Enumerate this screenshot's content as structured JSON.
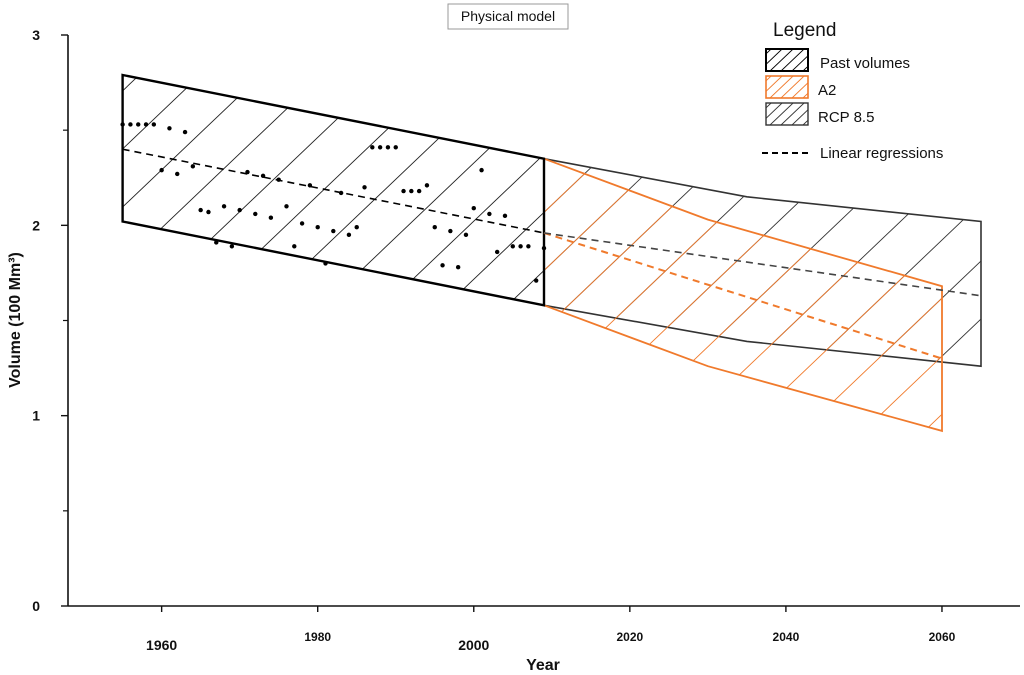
{
  "chart_data": {
    "type": "area",
    "title": "Physical model",
    "xlabel": "Year",
    "ylabel": "Volume (100 Mm³)",
    "xlim": [
      1948,
      2070
    ],
    "ylim": [
      0,
      3
    ],
    "x_ticks": [
      1960,
      1980,
      2000,
      2020,
      2040,
      2060
    ],
    "y_ticks": [
      0,
      1,
      2,
      3
    ],
    "grid": false,
    "legend_position": "top-right",
    "legend": {
      "title": "Legend",
      "items": [
        {
          "key": "past",
          "label": "Past volumes"
        },
        {
          "key": "a2",
          "label": "A2"
        },
        {
          "key": "rcp",
          "label": "RCP 8.5"
        },
        {
          "key": "regressions",
          "label": "Linear regressions"
        }
      ]
    },
    "colors": {
      "past": "#000000",
      "a2": "#f07a2c",
      "rcp": "#333333",
      "regression_rcp": "#444444"
    },
    "bands": [
      {
        "key": "past",
        "upper": [
          [
            1955,
            2.79
          ],
          [
            2009,
            2.35
          ]
        ],
        "lower": [
          [
            1955,
            2.02
          ],
          [
            2009,
            1.58
          ]
        ]
      },
      {
        "key": "a2",
        "upper": [
          [
            2009,
            2.35
          ],
          [
            2030,
            2.03
          ],
          [
            2060,
            1.68
          ]
        ],
        "lower": [
          [
            2009,
            1.58
          ],
          [
            2030,
            1.26
          ],
          [
            2060,
            0.92
          ]
        ]
      },
      {
        "key": "rcp",
        "upper": [
          [
            2009,
            2.35
          ],
          [
            2035,
            2.15
          ],
          [
            2065,
            2.02
          ]
        ],
        "lower": [
          [
            2009,
            1.58
          ],
          [
            2035,
            1.39
          ],
          [
            2065,
            1.26
          ]
        ]
      }
    ],
    "regressions": [
      {
        "key": "past",
        "points": [
          [
            1955,
            2.4
          ],
          [
            2009,
            1.96
          ]
        ]
      },
      {
        "key": "a2",
        "points": [
          [
            2009,
            1.96
          ],
          [
            2060,
            1.3
          ]
        ]
      },
      {
        "key": "rcp",
        "points": [
          [
            2009,
            1.96
          ],
          [
            2065,
            1.63
          ]
        ]
      }
    ],
    "observed": [
      [
        1955,
        2.53
      ],
      [
        1956,
        2.53
      ],
      [
        1957,
        2.53
      ],
      [
        1958,
        2.53
      ],
      [
        1959,
        2.53
      ],
      [
        1960,
        2.29
      ],
      [
        1961,
        2.51
      ],
      [
        1962,
        2.27
      ],
      [
        1963,
        2.49
      ],
      [
        1964,
        2.31
      ],
      [
        1965,
        2.08
      ],
      [
        1966,
        2.07
      ],
      [
        1967,
        1.91
      ],
      [
        1968,
        2.1
      ],
      [
        1969,
        1.89
      ],
      [
        1970,
        2.08
      ],
      [
        1971,
        2.28
      ],
      [
        1972,
        2.06
      ],
      [
        1973,
        2.26
      ],
      [
        1974,
        2.04
      ],
      [
        1975,
        2.24
      ],
      [
        1976,
        2.1
      ],
      [
        1977,
        1.89
      ],
      [
        1978,
        2.01
      ],
      [
        1979,
        2.21
      ],
      [
        1980,
        1.99
      ],
      [
        1981,
        1.8
      ],
      [
        1982,
        1.97
      ],
      [
        1983,
        2.17
      ],
      [
        1984,
        1.95
      ],
      [
        1985,
        1.99
      ],
      [
        1986,
        2.2
      ],
      [
        1987,
        2.41
      ],
      [
        1988,
        2.41
      ],
      [
        1989,
        2.41
      ],
      [
        1990,
        2.41
      ],
      [
        1991,
        2.18
      ],
      [
        1992,
        2.18
      ],
      [
        1993,
        2.18
      ],
      [
        1994,
        2.21
      ],
      [
        1995,
        1.99
      ],
      [
        1996,
        1.79
      ],
      [
        1997,
        1.97
      ],
      [
        1998,
        1.78
      ],
      [
        1999,
        1.95
      ],
      [
        2000,
        2.09
      ],
      [
        2001,
        2.29
      ],
      [
        2002,
        2.06
      ],
      [
        2003,
        1.86
      ],
      [
        2004,
        2.05
      ],
      [
        2005,
        1.89
      ],
      [
        2006,
        1.89
      ],
      [
        2007,
        1.89
      ],
      [
        2008,
        1.71
      ],
      [
        2009,
        1.88
      ]
    ]
  }
}
